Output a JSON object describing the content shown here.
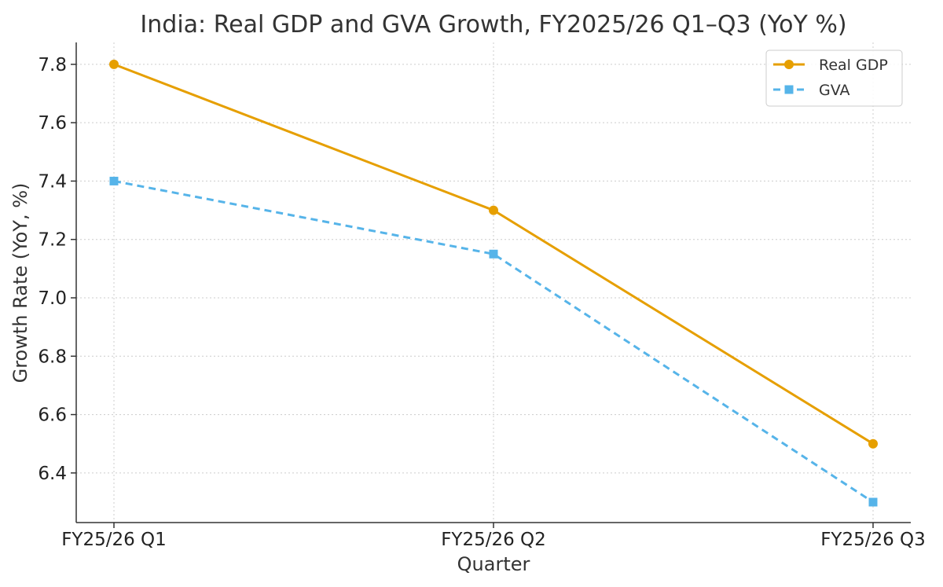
{
  "chart_data": {
    "type": "line",
    "title": "India: Real GDP and GVA Growth, FY2025/26 Q1–Q3 (YoY %)",
    "xlabel": "Quarter",
    "ylabel": "Growth Rate (YoY, %)",
    "categories": [
      "FY25/26 Q1",
      "FY25/26 Q2",
      "FY25/26 Q3"
    ],
    "ylim": [
      6.23,
      7.875
    ],
    "yticks": [
      6.4,
      6.6,
      6.8,
      7.0,
      7.2,
      7.4,
      7.6,
      7.8
    ],
    "ytick_labels": [
      "6.4",
      "6.6",
      "6.8",
      "7.0",
      "7.2",
      "7.4",
      "7.6",
      "7.8"
    ],
    "grid": true,
    "legend_position": "top-right",
    "series": [
      {
        "name": "Real GDP",
        "values": [
          7.8,
          7.3,
          6.5
        ],
        "color": "#E69F00",
        "marker": "circle",
        "line_style": "solid"
      },
      {
        "name": "GVA",
        "values": [
          7.4,
          7.15,
          6.3
        ],
        "color": "#56B4E9",
        "marker": "square",
        "line_style": "dashed"
      }
    ]
  }
}
